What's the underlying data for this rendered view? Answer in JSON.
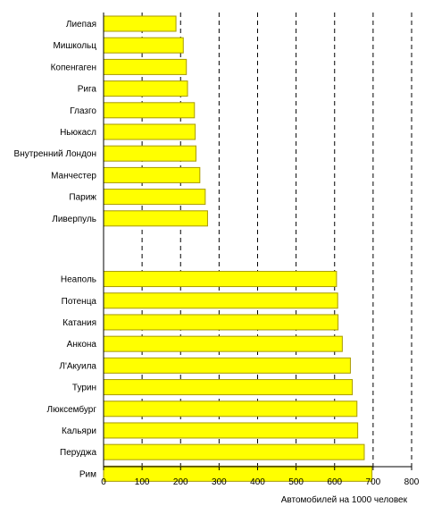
{
  "chart_data": {
    "type": "bar",
    "orientation": "horizontal",
    "title": "",
    "xlabel": "Автомобилей на 1000 человек",
    "ylabel": "",
    "xlim": [
      0,
      800
    ],
    "xticks": [
      0,
      100,
      200,
      300,
      400,
      500,
      600,
      700,
      800
    ],
    "grid": "vertical dashed",
    "legend": "none",
    "colors": {
      "bar_fill": "#ffff00",
      "bar_stroke": "#a89a00",
      "grid": "#000000",
      "axis": "#000000"
    },
    "groups": [
      {
        "categories": [
          "Лиепая",
          "Мишкольц",
          "Копенгаген",
          "Рига",
          "Глазго",
          "Ньюкасл",
          "Внутренний Лондон",
          "Манчестер",
          "Париж",
          "Ливерпуль"
        ],
        "values": [
          188,
          207,
          215,
          218,
          236,
          238,
          240,
          250,
          264,
          270
        ]
      },
      {
        "categories": [
          "Неаполь",
          "Потенца",
          "Катания",
          "Анкона",
          "Л'Акуила",
          "Турин",
          "Люксембург",
          "Кальяри",
          "Перуджа",
          "Рим"
        ],
        "values": [
          605,
          608,
          609,
          620,
          641,
          646,
          658,
          660,
          677,
          697
        ]
      }
    ]
  }
}
